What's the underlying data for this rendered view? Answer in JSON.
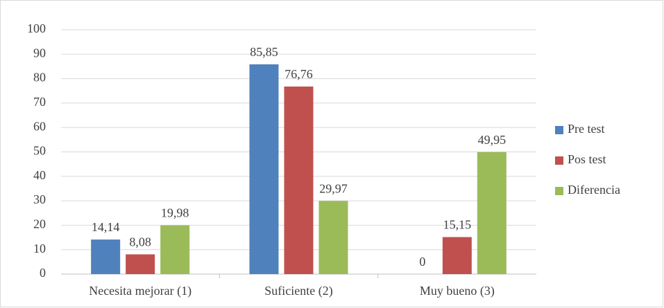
{
  "chart_data": {
    "type": "bar",
    "categories": [
      "Necesita mejorar (1)",
      "Suficiente (2)",
      "Muy bueno (3)"
    ],
    "series": [
      {
        "name": "Pre test",
        "color": "#4f81bd",
        "values": [
          14.14,
          85.85,
          0
        ],
        "value_labels": [
          "14,14",
          "85,85",
          "0"
        ]
      },
      {
        "name": "Pos test",
        "color": "#c0504d",
        "values": [
          8.08,
          76.76,
          15.15
        ],
        "value_labels": [
          "8,08",
          "76,76",
          "15,15"
        ]
      },
      {
        "name": "Diferencia",
        "color": "#9bbb59",
        "values": [
          19.98,
          29.97,
          49.95
        ],
        "value_labels": [
          "19,98",
          "29,97",
          "49,95"
        ]
      }
    ],
    "ylim": [
      0,
      100
    ],
    "yticks": [
      0,
      10,
      20,
      30,
      40,
      50,
      60,
      70,
      80,
      90,
      100
    ],
    "grid": true,
    "legend": "right"
  }
}
